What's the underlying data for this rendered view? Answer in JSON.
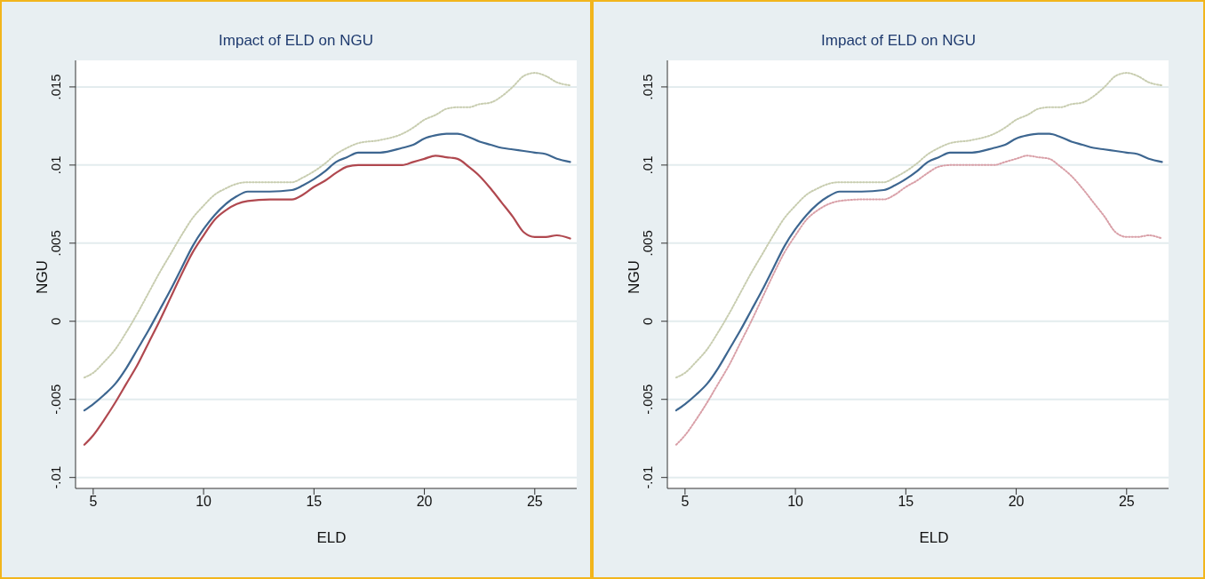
{
  "chart_data": [
    {
      "type": "line",
      "title": "Impact of ELD on NGU",
      "xlabel": "ELD",
      "ylabel": "NGU",
      "grid": "y",
      "xlim": [
        4.2,
        26.9
      ],
      "ylim": [
        -0.0107,
        0.0167
      ],
      "xticks": [
        5,
        10,
        15,
        20,
        25
      ],
      "yticks": [
        {
          "value": -0.01,
          "label": "-.01"
        },
        {
          "value": -0.005,
          "label": "-.005"
        },
        0,
        {
          "value": 0.005,
          "label": ".005"
        },
        {
          "value": 0.01,
          "label": ".01"
        },
        {
          "value": 0.015,
          "label": ".015"
        }
      ],
      "x": [
        4.6,
        5,
        5.5,
        6,
        6.5,
        7,
        7.5,
        8,
        8.5,
        9,
        9.5,
        10,
        10.5,
        11,
        11.5,
        12,
        13,
        14,
        14.5,
        15,
        15.5,
        16,
        16.5,
        17,
        18,
        19,
        19.5,
        20,
        20.5,
        21,
        21.5,
        22,
        22.5,
        23,
        23.5,
        24,
        24.5,
        25,
        25.5,
        26,
        26.6
      ],
      "series": [
        {
          "color": "#c8cdb0",
          "line_style": "dotted",
          "values": [
            -0.0036,
            -0.0033,
            -0.0026,
            -0.0018,
            -0.0007,
            0.0005,
            0.0018,
            0.0031,
            0.0043,
            0.0055,
            0.0066,
            0.0074,
            0.0081,
            0.0085,
            0.0088,
            0.0089,
            0.0089,
            0.0089,
            0.0092,
            0.0096,
            0.0101,
            0.0107,
            0.0111,
            0.0114,
            0.0116,
            0.012,
            0.0124,
            0.0129,
            0.0132,
            0.0136,
            0.0137,
            0.0137,
            0.0139,
            0.014,
            0.0144,
            0.015,
            0.0157,
            0.0159,
            0.0157,
            0.0153,
            0.0151
          ]
        },
        {
          "color": "#b0484f",
          "line_style": "solid",
          "values": [
            -0.0079,
            -0.0073,
            -0.0063,
            -0.0052,
            -0.004,
            -0.0028,
            -0.0014,
            0.0,
            0.0015,
            0.003,
            0.0044,
            0.0055,
            0.0065,
            0.0071,
            0.0075,
            0.0077,
            0.0078,
            0.0078,
            0.0081,
            0.0086,
            0.009,
            0.0095,
            0.0099,
            0.01,
            0.01,
            0.01,
            0.0102,
            0.0104,
            0.0106,
            0.0105,
            0.0104,
            0.0099,
            0.0093,
            0.0085,
            0.0076,
            0.0067,
            0.0057,
            0.0054,
            0.0054,
            0.0055,
            0.0053
          ]
        },
        {
          "color": "#3d6690",
          "line_style": "solid",
          "values": [
            -0.0057,
            -0.0053,
            -0.0047,
            -0.004,
            -0.003,
            -0.0018,
            -0.0006,
            0.0007,
            0.002,
            0.0034,
            0.0048,
            0.0059,
            0.0068,
            0.0075,
            0.008,
            0.0083,
            0.0083,
            0.0084,
            0.0087,
            0.0091,
            0.0096,
            0.0102,
            0.0105,
            0.0108,
            0.0108,
            0.0111,
            0.0113,
            0.0117,
            0.0119,
            0.012,
            0.012,
            0.0118,
            0.0115,
            0.0113,
            0.0111,
            0.011,
            0.0109,
            0.0108,
            0.0107,
            0.0104,
            0.0102
          ]
        }
      ]
    },
    {
      "type": "line",
      "title": "Impact of ELD on NGU",
      "xlabel": "ELD",
      "ylabel": "NGU",
      "grid": "y",
      "xlim": [
        4.2,
        26.9
      ],
      "ylim": [
        -0.0107,
        0.0167
      ],
      "xticks": [
        5,
        10,
        15,
        20,
        25
      ],
      "yticks": [
        {
          "value": -0.01,
          "label": "-.01"
        },
        {
          "value": -0.005,
          "label": "-.005"
        },
        0,
        {
          "value": 0.005,
          "label": ".005"
        },
        {
          "value": 0.01,
          "label": ".01"
        },
        {
          "value": 0.015,
          "label": ".015"
        }
      ],
      "x": [
        4.6,
        5,
        5.5,
        6,
        6.5,
        7,
        7.5,
        8,
        8.5,
        9,
        9.5,
        10,
        10.5,
        11,
        11.5,
        12,
        13,
        14,
        14.5,
        15,
        15.5,
        16,
        16.5,
        17,
        18,
        19,
        19.5,
        20,
        20.5,
        21,
        21.5,
        22,
        22.5,
        23,
        23.5,
        24,
        24.5,
        25,
        25.5,
        26,
        26.6
      ],
      "series": [
        {
          "color": "#c8cdb0",
          "line_style": "dotted",
          "values": [
            -0.0036,
            -0.0033,
            -0.0026,
            -0.0018,
            -0.0007,
            0.0005,
            0.0018,
            0.0031,
            0.0043,
            0.0055,
            0.0066,
            0.0074,
            0.0081,
            0.0085,
            0.0088,
            0.0089,
            0.0089,
            0.0089,
            0.0092,
            0.0096,
            0.0101,
            0.0107,
            0.0111,
            0.0114,
            0.0116,
            0.012,
            0.0124,
            0.0129,
            0.0132,
            0.0136,
            0.0137,
            0.0137,
            0.0139,
            0.014,
            0.0144,
            0.015,
            0.0157,
            0.0159,
            0.0157,
            0.0153,
            0.0151
          ]
        },
        {
          "color": "#d9a0a8",
          "line_style": "dotted",
          "values": [
            -0.0079,
            -0.0073,
            -0.0063,
            -0.0052,
            -0.004,
            -0.0028,
            -0.0014,
            0.0,
            0.0015,
            0.003,
            0.0044,
            0.0055,
            0.0065,
            0.0071,
            0.0075,
            0.0077,
            0.0078,
            0.0078,
            0.0081,
            0.0086,
            0.009,
            0.0095,
            0.0099,
            0.01,
            0.01,
            0.01,
            0.0102,
            0.0104,
            0.0106,
            0.0105,
            0.0104,
            0.0099,
            0.0093,
            0.0085,
            0.0076,
            0.0067,
            0.0057,
            0.0054,
            0.0054,
            0.0055,
            0.0053
          ]
        },
        {
          "color": "#3d6690",
          "line_style": "solid",
          "values": [
            -0.0057,
            -0.0053,
            -0.0047,
            -0.004,
            -0.003,
            -0.0018,
            -0.0006,
            0.0007,
            0.002,
            0.0034,
            0.0048,
            0.0059,
            0.0068,
            0.0075,
            0.008,
            0.0083,
            0.0083,
            0.0084,
            0.0087,
            0.0091,
            0.0096,
            0.0102,
            0.0105,
            0.0108,
            0.0108,
            0.0111,
            0.0113,
            0.0117,
            0.0119,
            0.012,
            0.012,
            0.0118,
            0.0115,
            0.0113,
            0.0111,
            0.011,
            0.0109,
            0.0108,
            0.0107,
            0.0104,
            0.0102
          ]
        }
      ]
    }
  ]
}
